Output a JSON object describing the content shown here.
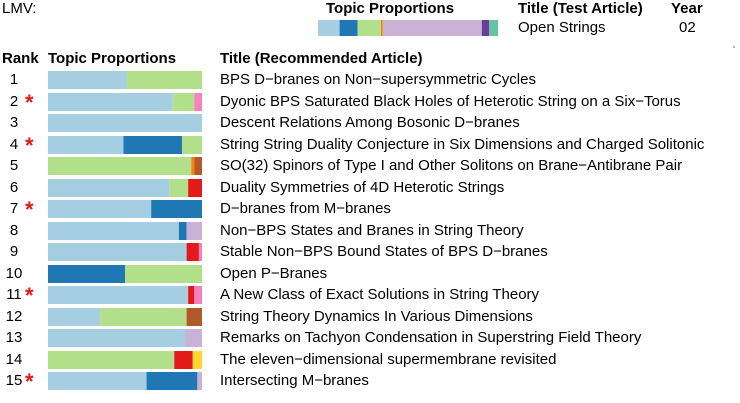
{
  "header": {
    "lmv_label": "LMV:",
    "topic_proportions_label": "Topic Proportions",
    "title_test_label": "Title (Test Article)",
    "year_label": "Year",
    "test_title": "Open Strings",
    "test_year": "02"
  },
  "columns": {
    "rank": "Rank",
    "topic_proportions": "Topic Proportions",
    "title_recommended": "Title (Recommended Article)"
  },
  "colors": {
    "light_blue": "#a6cee3",
    "dark_blue": "#1f78b4",
    "light_green": "#b2df8a",
    "red": "#e31a1c",
    "brown": "#b15928",
    "orange": "#ff7f00",
    "lavender": "#cab2d6",
    "pink": "#f781bf",
    "yellow": "#ffd92f",
    "purple": "#6a3d9a",
    "teal": "#66c2a5",
    "star": "#e31a1c"
  },
  "chart_data": {
    "type": "bar",
    "orientation": "horizontal-stacked",
    "test_article": {
      "title": "Open Strings",
      "year": "02",
      "segments": [
        {
          "color": "light_blue",
          "value": 0.12
        },
        {
          "color": "dark_blue",
          "value": 0.1
        },
        {
          "color": "light_green",
          "value": 0.13
        },
        {
          "color": "orange",
          "value": 0.01
        },
        {
          "color": "lavender",
          "value": 0.55
        },
        {
          "color": "purple",
          "value": 0.04
        },
        {
          "color": "teal",
          "value": 0.05
        }
      ]
    },
    "rows": [
      {
        "rank": "1",
        "star": "",
        "title": "BPS D−branes on Non−supersymmetric Cycles",
        "segments": [
          {
            "color": "light_blue",
            "value": 0.51
          },
          {
            "color": "light_green",
            "value": 0.49
          }
        ]
      },
      {
        "rank": "2",
        "star": "*",
        "title": "Dyonic BPS Saturated Black Holes of Heterotic String on a Six−Torus",
        "segments": [
          {
            "color": "light_blue",
            "value": 0.81
          },
          {
            "color": "light_green",
            "value": 0.14
          },
          {
            "color": "pink",
            "value": 0.05
          }
        ]
      },
      {
        "rank": "3",
        "star": "",
        "title": "Descent Relations Among Bosonic D−branes",
        "segments": [
          {
            "color": "light_blue",
            "value": 1.0
          }
        ]
      },
      {
        "rank": "4",
        "star": "*",
        "title": "String String Duality Conjecture in Six Dimensions and Charged Solitonic",
        "segments": [
          {
            "color": "light_blue",
            "value": 0.49
          },
          {
            "color": "dark_blue",
            "value": 0.38
          },
          {
            "color": "light_green",
            "value": 0.13
          }
        ]
      },
      {
        "rank": "5",
        "star": "",
        "title": "SO(32) Spinors of Type I and Other Solitons on Brane−Antibrane Pair",
        "segments": [
          {
            "color": "light_green",
            "value": 0.93
          },
          {
            "color": "orange",
            "value": 0.02
          },
          {
            "color": "brown",
            "value": 0.05
          }
        ]
      },
      {
        "rank": "6",
        "star": "",
        "title": "Duality Symmetries of 4D Heterotic Strings",
        "segments": [
          {
            "color": "light_blue",
            "value": 0.79
          },
          {
            "color": "light_green",
            "value": 0.12
          },
          {
            "color": "red",
            "value": 0.09
          }
        ]
      },
      {
        "rank": "7",
        "star": "*",
        "title": "D−branes from M−branes",
        "segments": [
          {
            "color": "light_blue",
            "value": 0.67
          },
          {
            "color": "dark_blue",
            "value": 0.33
          }
        ]
      },
      {
        "rank": "8",
        "star": "",
        "title": "Non−BPS States and Branes in String Theory",
        "segments": [
          {
            "color": "light_blue",
            "value": 0.85
          },
          {
            "color": "dark_blue",
            "value": 0.05
          },
          {
            "color": "lavender",
            "value": 0.1
          }
        ]
      },
      {
        "rank": "9",
        "star": "",
        "title": "Stable Non−BPS Bound States of BPS D−branes",
        "segments": [
          {
            "color": "light_blue",
            "value": 0.9
          },
          {
            "color": "red",
            "value": 0.08
          },
          {
            "color": "pink",
            "value": 0.02
          }
        ]
      },
      {
        "rank": "10",
        "star": "",
        "title": "Open P−Branes",
        "segments": [
          {
            "color": "dark_blue",
            "value": 0.5
          },
          {
            "color": "light_green",
            "value": 0.5
          }
        ]
      },
      {
        "rank": "11",
        "star": "*",
        "title": "A New Class of Exact Solutions in String Theory",
        "segments": [
          {
            "color": "light_blue",
            "value": 0.91
          },
          {
            "color": "red",
            "value": 0.04
          },
          {
            "color": "pink",
            "value": 0.05
          }
        ]
      },
      {
        "rank": "12",
        "star": "",
        "title": "String Theory Dynamics In Various Dimensions",
        "segments": [
          {
            "color": "light_blue",
            "value": 0.34
          },
          {
            "color": "light_green",
            "value": 0.56
          },
          {
            "color": "brown",
            "value": 0.1
          }
        ]
      },
      {
        "rank": "13",
        "star": "",
        "title": "Remarks on Tachyon Condensation in Superstring Field Theory",
        "segments": [
          {
            "color": "light_blue",
            "value": 0.89
          },
          {
            "color": "lavender",
            "value": 0.11
          }
        ]
      },
      {
        "rank": "14",
        "star": "",
        "title": "The eleven−dimensional supermembrane revisited",
        "segments": [
          {
            "color": "light_green",
            "value": 0.82
          },
          {
            "color": "red",
            "value": 0.12
          },
          {
            "color": "yellow",
            "value": 0.06
          }
        ]
      },
      {
        "rank": "15",
        "star": "*",
        "title": "Intersecting M−branes",
        "segments": [
          {
            "color": "light_blue",
            "value": 0.64
          },
          {
            "color": "dark_blue",
            "value": 0.33
          },
          {
            "color": "lavender",
            "value": 0.03
          }
        ]
      }
    ]
  }
}
